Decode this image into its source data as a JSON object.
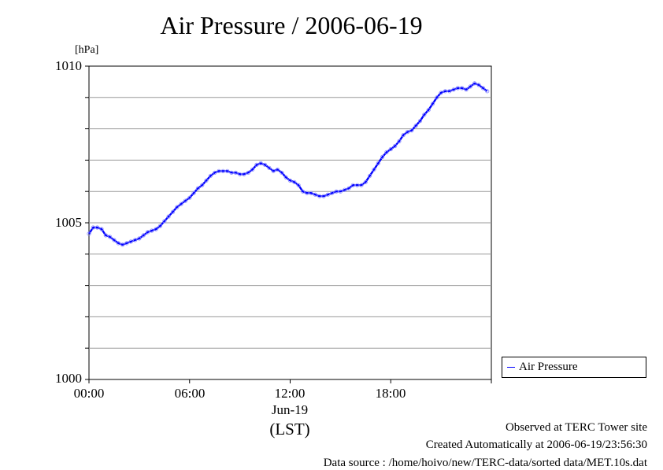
{
  "chart_data": {
    "type": "line",
    "title": "Air Pressure / 2006-06-19",
    "unit_label": "[hPa]",
    "ylim": [
      1000,
      1010
    ],
    "yticks": [
      "1000",
      "1005",
      "1010"
    ],
    "y_grid": [
      1001,
      1002,
      1003,
      1004,
      1005,
      1006,
      1007,
      1008,
      1009
    ],
    "xlim": [
      "00:00",
      "24:00"
    ],
    "xticks": [
      "00:00",
      "06:00",
      "12:00",
      "18:00"
    ],
    "x_sublabel": "Jun-19",
    "xlabel": "(LST)",
    "grid": true,
    "legend_position": "bottom-right, outside plot",
    "series": [
      {
        "name": "Air Pressure",
        "color": "#0000ff",
        "x": [
          "00:00",
          "00:15",
          "00:30",
          "00:45",
          "01:00",
          "01:15",
          "01:30",
          "01:45",
          "02:00",
          "02:15",
          "02:30",
          "02:45",
          "03:00",
          "03:15",
          "03:30",
          "03:45",
          "04:00",
          "04:15",
          "04:30",
          "04:45",
          "05:00",
          "05:15",
          "05:30",
          "05:45",
          "06:00",
          "06:15",
          "06:30",
          "06:45",
          "07:00",
          "07:15",
          "07:30",
          "07:45",
          "08:00",
          "08:15",
          "08:30",
          "08:45",
          "09:00",
          "09:15",
          "09:30",
          "09:45",
          "10:00",
          "10:15",
          "10:30",
          "10:45",
          "11:00",
          "11:15",
          "11:30",
          "11:45",
          "12:00",
          "12:15",
          "12:30",
          "12:45",
          "13:00",
          "13:15",
          "13:30",
          "13:45",
          "14:00",
          "14:15",
          "14:30",
          "14:45",
          "15:00",
          "15:15",
          "15:30",
          "15:45",
          "16:00",
          "16:15",
          "16:30",
          "16:45",
          "17:00",
          "17:15",
          "17:30",
          "17:45",
          "18:00",
          "18:15",
          "18:30",
          "18:45",
          "19:00",
          "19:15",
          "19:30",
          "19:45",
          "20:00",
          "20:15",
          "20:30",
          "20:45",
          "21:00",
          "21:15",
          "21:30",
          "21:45",
          "22:00",
          "22:15",
          "22:30",
          "22:45",
          "23:00",
          "23:15",
          "23:30",
          "23:45"
        ],
        "values": [
          1004.65,
          1004.85,
          1004.85,
          1004.8,
          1004.6,
          1004.55,
          1004.45,
          1004.35,
          1004.3,
          1004.35,
          1004.4,
          1004.45,
          1004.5,
          1004.6,
          1004.7,
          1004.75,
          1004.8,
          1004.9,
          1005.05,
          1005.2,
          1005.35,
          1005.5,
          1005.6,
          1005.7,
          1005.8,
          1005.95,
          1006.1,
          1006.2,
          1006.35,
          1006.5,
          1006.6,
          1006.65,
          1006.65,
          1006.65,
          1006.6,
          1006.6,
          1006.55,
          1006.55,
          1006.6,
          1006.7,
          1006.85,
          1006.9,
          1006.85,
          1006.75,
          1006.65,
          1006.7,
          1006.6,
          1006.45,
          1006.35,
          1006.3,
          1006.2,
          1006.0,
          1005.95,
          1005.95,
          1005.9,
          1005.85,
          1005.85,
          1005.9,
          1005.95,
          1006.0,
          1006.0,
          1006.05,
          1006.1,
          1006.2,
          1006.2,
          1006.2,
          1006.3,
          1006.5,
          1006.7,
          1006.9,
          1007.1,
          1007.25,
          1007.35,
          1007.45,
          1007.6,
          1007.8,
          1007.9,
          1007.95,
          1008.1,
          1008.25,
          1008.45,
          1008.6,
          1008.8,
          1009.0,
          1009.15,
          1009.2,
          1009.2,
          1009.25,
          1009.3,
          1009.3,
          1009.25,
          1009.35,
          1009.45,
          1009.4,
          1009.3,
          1009.2
        ]
      }
    ]
  },
  "footer": {
    "line1": "Observed at TERC Tower site",
    "line2": "Created Automatically at 2006-06-19/23:56:30",
    "line3": "Data source : /home/hoivo/new/TERC-data/sorted  data/MET.10s.dat"
  }
}
